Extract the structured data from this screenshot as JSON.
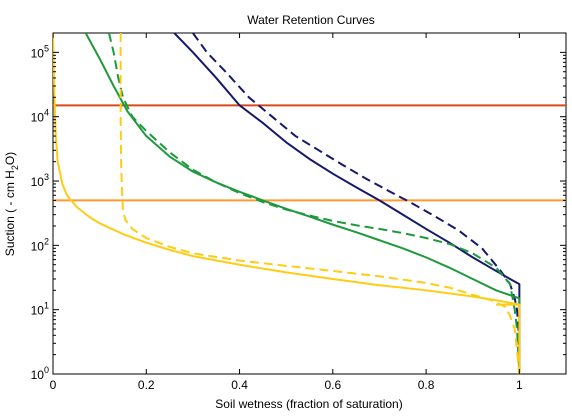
{
  "chart_data": {
    "type": "line",
    "title": "Water Retention Curves",
    "xlabel": "Soil wetness (fraction of saturation)",
    "ylabel_main": "Suction ( - cm H",
    "ylabel_sub": "2",
    "ylabel_end": "O)",
    "xlim": [
      0,
      1.1
    ],
    "ylim": [
      1,
      200000
    ],
    "yscale": "log",
    "grid": false,
    "x_ticks": [
      {
        "value": 0,
        "label": "0"
      },
      {
        "value": 0.2,
        "label": "0.2"
      },
      {
        "value": 0.4,
        "label": "0.4"
      },
      {
        "value": 0.6,
        "label": "0.6"
      },
      {
        "value": 0.8,
        "label": "0.8"
      },
      {
        "value": 1.0,
        "label": "1"
      }
    ],
    "y_ticks": [
      {
        "value": 1,
        "label_base": "10",
        "label_exp": "0"
      },
      {
        "value": 10,
        "label_base": "10",
        "label_exp": "1"
      },
      {
        "value": 100,
        "label_base": "10",
        "label_exp": "2"
      },
      {
        "value": 1000,
        "label_base": "10",
        "label_exp": "3"
      },
      {
        "value": 10000,
        "label_base": "10",
        "label_exp": "4"
      },
      {
        "value": 100000,
        "label_base": "10",
        "label_exp": "5"
      }
    ],
    "hlines": [
      {
        "y": 15000,
        "color": "#d94a1a"
      },
      {
        "y": 500,
        "color": "#ff9a2e"
      }
    ],
    "series": [
      {
        "color": "#16196b",
        "dash": false,
        "points": [
          [
            0.26,
            200000
          ],
          [
            0.3,
            100000
          ],
          [
            0.35,
            40000
          ],
          [
            0.4,
            15000
          ],
          [
            0.45,
            8000
          ],
          [
            0.5,
            4000
          ],
          [
            0.55,
            2200
          ],
          [
            0.6,
            1300
          ],
          [
            0.65,
            800
          ],
          [
            0.7,
            500
          ],
          [
            0.75,
            300
          ],
          [
            0.8,
            180
          ],
          [
            0.85,
            110
          ],
          [
            0.9,
            65
          ],
          [
            0.95,
            40
          ],
          [
            0.98,
            30
          ],
          [
            1.0,
            25
          ],
          [
            1.0,
            10
          ],
          [
            1.0,
            1
          ]
        ]
      },
      {
        "color": "#16196b",
        "dash": true,
        "points": [
          [
            0.3,
            200000
          ],
          [
            0.33,
            100000
          ],
          [
            0.37,
            50000
          ],
          [
            0.42,
            20000
          ],
          [
            0.47,
            10000
          ],
          [
            0.52,
            5000
          ],
          [
            0.57,
            3000
          ],
          [
            0.62,
            1800
          ],
          [
            0.67,
            1100
          ],
          [
            0.72,
            700
          ],
          [
            0.77,
            450
          ],
          [
            0.82,
            280
          ],
          [
            0.87,
            170
          ],
          [
            0.92,
            90
          ],
          [
            0.96,
            40
          ],
          [
            0.98,
            25
          ],
          [
            0.99,
            15
          ],
          [
            0.995,
            10
          ],
          [
            0.998,
            5
          ],
          [
            1.0,
            1
          ]
        ]
      },
      {
        "color": "#1e9a3c",
        "dash": false,
        "points": [
          [
            0.07,
            200000
          ],
          [
            0.1,
            80000
          ],
          [
            0.13,
            30000
          ],
          [
            0.16,
            12000
          ],
          [
            0.2,
            5000
          ],
          [
            0.25,
            2400
          ],
          [
            0.3,
            1400
          ],
          [
            0.35,
            950
          ],
          [
            0.4,
            680
          ],
          [
            0.45,
            500
          ],
          [
            0.5,
            370
          ],
          [
            0.55,
            280
          ],
          [
            0.6,
            210
          ],
          [
            0.65,
            160
          ],
          [
            0.7,
            120
          ],
          [
            0.75,
            90
          ],
          [
            0.8,
            65
          ],
          [
            0.85,
            45
          ],
          [
            0.9,
            30
          ],
          [
            0.95,
            20
          ],
          [
            1.0,
            15
          ],
          [
            1.0,
            12
          ]
        ]
      },
      {
        "color": "#1e9a3c",
        "dash": true,
        "points": [
          [
            0.12,
            200000
          ],
          [
            0.13,
            100000
          ],
          [
            0.14,
            40000
          ],
          [
            0.15,
            20000
          ],
          [
            0.17,
            10000
          ],
          [
            0.2,
            6000
          ],
          [
            0.25,
            2800
          ],
          [
            0.3,
            1500
          ],
          [
            0.35,
            950
          ],
          [
            0.4,
            650
          ],
          [
            0.45,
            470
          ],
          [
            0.5,
            360
          ],
          [
            0.55,
            290
          ],
          [
            0.6,
            240
          ],
          [
            0.65,
            205
          ],
          [
            0.7,
            180
          ],
          [
            0.75,
            155
          ],
          [
            0.8,
            130
          ],
          [
            0.85,
            105
          ],
          [
            0.9,
            75
          ],
          [
            0.95,
            45
          ],
          [
            0.98,
            25
          ],
          [
            0.99,
            10
          ],
          [
            0.995,
            5
          ],
          [
            1.0,
            1
          ]
        ]
      },
      {
        "color": "#ffcc14",
        "dash": false,
        "points": [
          [
            0.0,
            200000
          ],
          [
            0.003,
            20000
          ],
          [
            0.006,
            5000
          ],
          [
            0.01,
            2000
          ],
          [
            0.02,
            900
          ],
          [
            0.03,
            600
          ],
          [
            0.05,
            400
          ],
          [
            0.08,
            270
          ],
          [
            0.1,
            220
          ],
          [
            0.15,
            150
          ],
          [
            0.2,
            110
          ],
          [
            0.25,
            85
          ],
          [
            0.3,
            68
          ],
          [
            0.4,
            50
          ],
          [
            0.5,
            38
          ],
          [
            0.6,
            30
          ],
          [
            0.7,
            24
          ],
          [
            0.8,
            20
          ],
          [
            0.9,
            16
          ],
          [
            0.95,
            14
          ],
          [
            1.0,
            12
          ],
          [
            1.0,
            1
          ]
        ]
      },
      {
        "color": "#ffcc14",
        "dash": true,
        "points": [
          [
            0.145,
            200000
          ],
          [
            0.145,
            100000
          ],
          [
            0.145,
            10000
          ],
          [
            0.146,
            2000
          ],
          [
            0.148,
            700
          ],
          [
            0.15,
            350
          ],
          [
            0.155,
            250
          ],
          [
            0.17,
            180
          ],
          [
            0.2,
            130
          ],
          [
            0.25,
            95
          ],
          [
            0.3,
            75
          ],
          [
            0.4,
            58
          ],
          [
            0.5,
            48
          ],
          [
            0.6,
            40
          ],
          [
            0.7,
            33
          ],
          [
            0.8,
            26
          ],
          [
            0.85,
            22
          ],
          [
            0.9,
            17
          ],
          [
            0.94,
            14
          ],
          [
            0.96,
            12
          ],
          [
            0.97,
            11
          ],
          [
            0.98,
            8
          ],
          [
            0.99,
            5
          ],
          [
            1.0,
            1
          ]
        ]
      },
      {
        "color": "#ffcc14",
        "dash": false,
        "points": [
          [
            0.95,
            12
          ],
          [
            1.0,
            12
          ]
        ]
      }
    ]
  }
}
